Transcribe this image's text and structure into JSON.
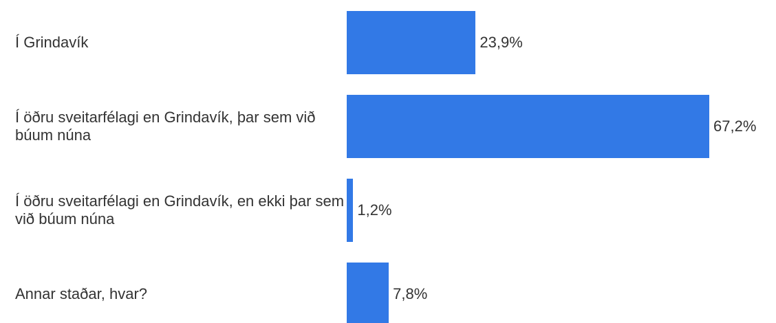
{
  "chart_data": {
    "type": "bar",
    "orientation": "horizontal",
    "color": "#3279e6",
    "categories": [
      "Í Grindavík",
      "Í öðru sveitarfélagi en Grindavík, þar sem við búum núna",
      "Í öðru sveitarfélagi en Grindavík, en ekki þar sem við búum núna",
      "Annar staðar, hvar?"
    ],
    "values": [
      23.9,
      67.2,
      1.2,
      7.8
    ],
    "value_labels": [
      "23,9%",
      "67,2%",
      "1,2%",
      "7,8%"
    ]
  }
}
